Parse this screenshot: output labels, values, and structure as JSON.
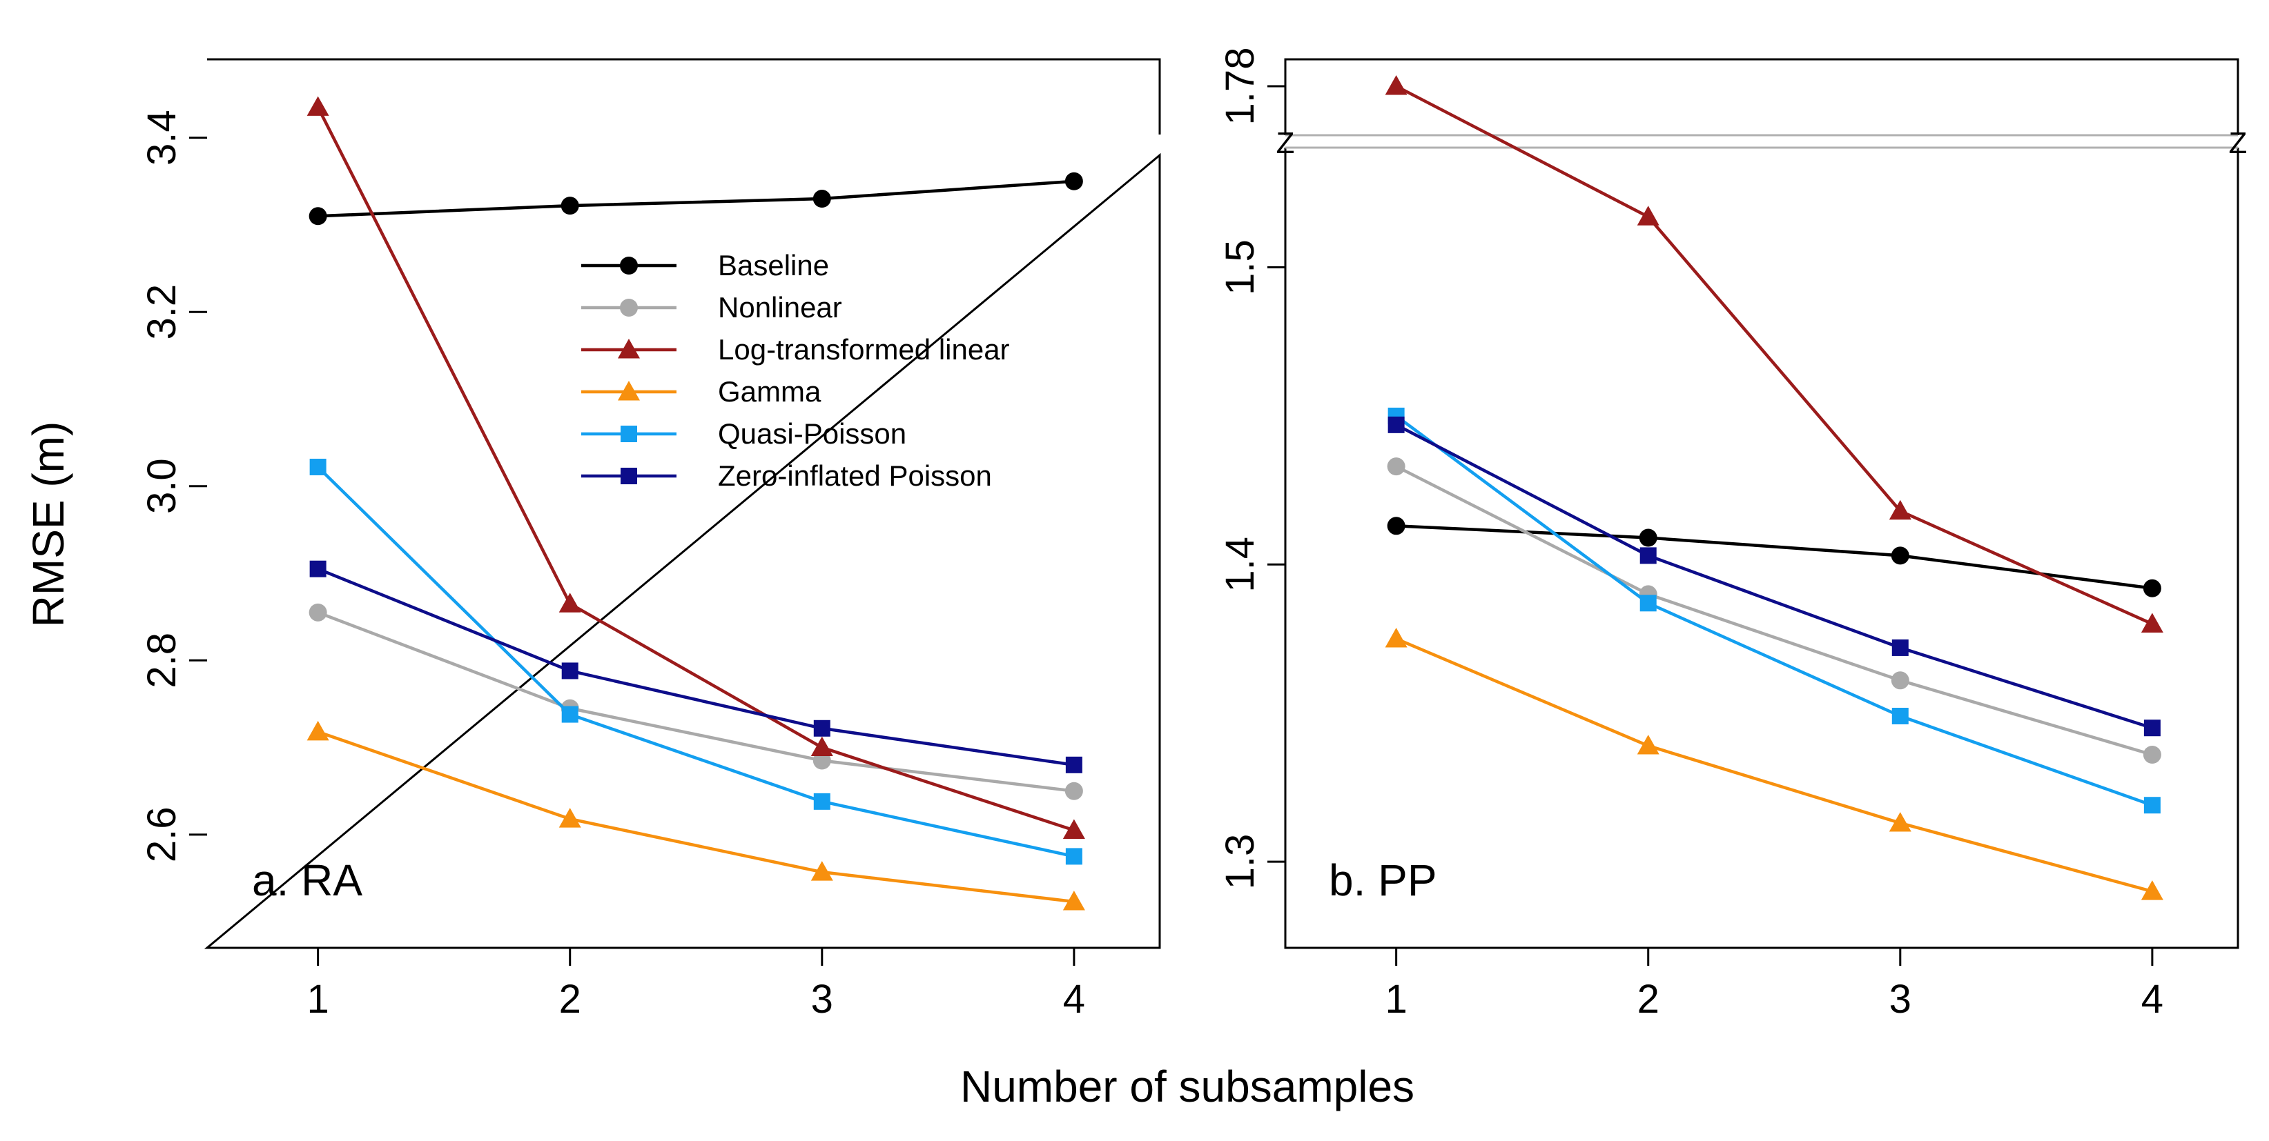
{
  "figure": {
    "xlabel": "Number of subsamples",
    "ylabel": "RMSE (m)"
  },
  "legend": {
    "position": "top-right of panel a",
    "entries": [
      "Baseline",
      "Nonlinear",
      "Log-transformed linear",
      "Gamma",
      "Quasi-Poisson",
      "Zero-inflated Poisson"
    ]
  },
  "series_style": [
    {
      "name": "Baseline",
      "color": "#000000",
      "marker": "circle"
    },
    {
      "name": "Nonlinear",
      "color": "#A9A9A9",
      "marker": "circle"
    },
    {
      "name": "Log-transformed linear",
      "color": "#9B1B1B",
      "marker": "triangle"
    },
    {
      "name": "Gamma",
      "color": "#F7900E",
      "marker": "triangle"
    },
    {
      "name": "Quasi-Poisson",
      "color": "#139FF0",
      "marker": "square"
    },
    {
      "name": "Zero-inflated Poisson",
      "color": "#0D0D8A",
      "marker": "square"
    }
  ],
  "chart_data": [
    {
      "type": "line",
      "title": "a. RA",
      "xlabel": "Number of subsamples",
      "ylabel": "RMSE (m)",
      "x": [
        1,
        2,
        3,
        4
      ],
      "xticks": [
        "1",
        "2",
        "3",
        "4"
      ],
      "yticks": [
        "2.6",
        "2.8",
        "3.0",
        "3.2",
        "3.4"
      ],
      "ylim": [
        2.47,
        3.49
      ],
      "xlim": [
        0.56,
        4.34
      ],
      "grid": false,
      "series": [
        {
          "name": "Baseline",
          "values": [
            3.31,
            3.322,
            3.33,
            3.35
          ]
        },
        {
          "name": "Nonlinear",
          "values": [
            2.855,
            2.745,
            2.685,
            2.65
          ]
        },
        {
          "name": "Log-transformed linear",
          "values": [
            3.435,
            2.865,
            2.7,
            2.605
          ]
        },
        {
          "name": "Gamma",
          "values": [
            2.718,
            2.618,
            2.557,
            2.523
          ]
        },
        {
          "name": "Quasi-Poisson",
          "values": [
            3.022,
            2.738,
            2.638,
            2.575
          ]
        },
        {
          "name": "Zero-inflated Poisson",
          "values": [
            2.905,
            2.788,
            2.722,
            2.68
          ]
        }
      ]
    },
    {
      "type": "line",
      "title": "b. PP",
      "xlabel": "Number of subsamples",
      "ylabel": "RMSE (m)",
      "x": [
        1,
        2,
        3,
        4
      ],
      "xticks": [
        "1",
        "2",
        "3",
        "4"
      ],
      "yticks": [
        "1.3",
        "1.4",
        "1.5"
      ],
      "break_tick": "1.78",
      "break_marker": "Z",
      "ylim": [
        1.271,
        1.57
      ],
      "xlim": [
        0.56,
        4.34
      ],
      "grid": false,
      "series": [
        {
          "name": "Baseline",
          "values": [
            1.413,
            1.409,
            1.403,
            1.392
          ]
        },
        {
          "name": "Nonlinear",
          "values": [
            1.433,
            1.39,
            1.361,
            1.336
          ]
        },
        {
          "name": "Log-transformed linear",
          "values": [
            1.78,
            1.517,
            1.418,
            1.38
          ]
        },
        {
          "name": "Gamma",
          "values": [
            1.375,
            1.339,
            1.313,
            1.29
          ]
        },
        {
          "name": "Quasi-Poisson",
          "values": [
            1.45,
            1.387,
            1.349,
            1.319
          ]
        },
        {
          "name": "Zero-inflated Poisson",
          "values": [
            1.447,
            1.403,
            1.372,
            1.345
          ]
        }
      ]
    }
  ]
}
